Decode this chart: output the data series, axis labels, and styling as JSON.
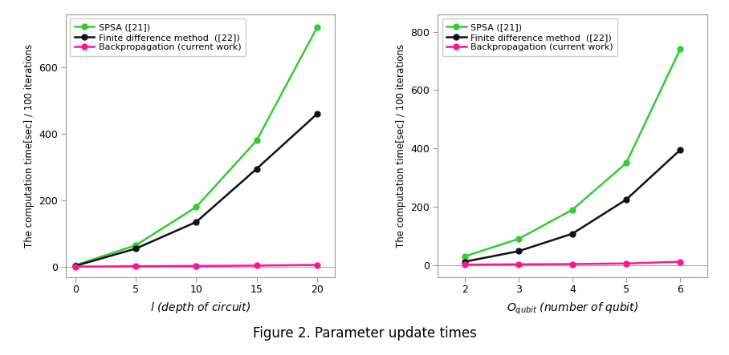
{
  "left": {
    "x": [
      0,
      5,
      10,
      15,
      20
    ],
    "spsa": [
      5,
      65,
      180,
      380,
      720
    ],
    "fd": [
      3,
      55,
      135,
      295,
      460
    ],
    "bp": [
      1,
      2,
      3,
      4,
      6
    ],
    "ylim": [
      -30,
      760
    ],
    "yticks": [
      0,
      200,
      400,
      600
    ],
    "xticks": [
      0,
      5,
      10,
      15,
      20
    ],
    "xlim": [
      -0.8,
      21.5
    ]
  },
  "right": {
    "x": [
      2,
      3,
      4,
      5,
      6
    ],
    "spsa": [
      30,
      90,
      190,
      350,
      740
    ],
    "fd": [
      12,
      48,
      108,
      225,
      395
    ],
    "bp": [
      2,
      3,
      4,
      6,
      12
    ],
    "ylim": [
      -40,
      860
    ],
    "yticks": [
      0,
      200,
      400,
      600,
      800
    ],
    "xticks": [
      2,
      3,
      4,
      5,
      6
    ],
    "xlim": [
      1.5,
      6.5
    ]
  },
  "spsa_color": "#33cc33",
  "fd_color": "#111111",
  "bp_color": "#ff1493",
  "marker": "o",
  "markersize": 5,
  "linewidth": 1.8,
  "legend_spsa": "SPSA ([21])",
  "legend_fd": "Finite difference method  ([22])",
  "legend_bp": "Backpropagation (current work)",
  "ylabel": "The computation time[sec] / 100 iterations",
  "xlabel_left": "$l$ (depth of circuit)",
  "xlabel_right": "$O_{qubit}$ (number of qubit)",
  "figure_caption": "Figure 2. Parameter update times",
  "bg_color": "#ffffff",
  "spine_color": "#999999"
}
